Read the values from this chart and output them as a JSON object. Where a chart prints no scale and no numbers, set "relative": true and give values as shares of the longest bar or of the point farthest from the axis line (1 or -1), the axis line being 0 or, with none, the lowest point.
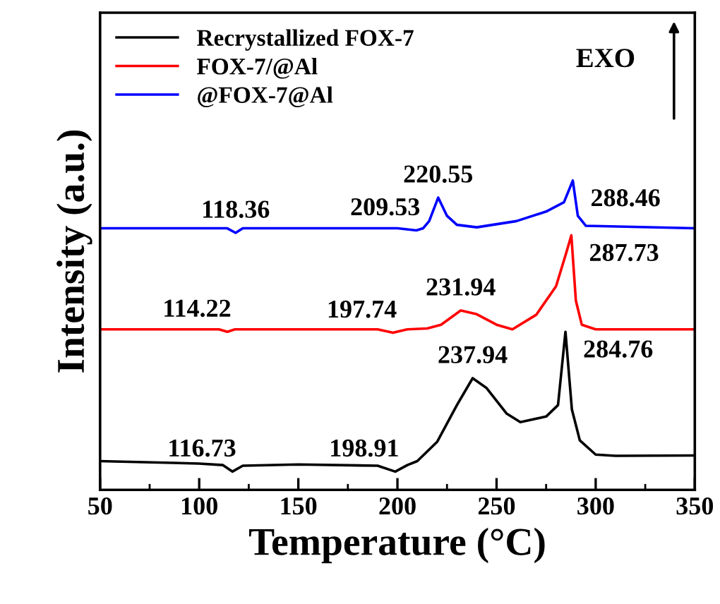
{
  "chart_data": {
    "type": "line",
    "relative": true,
    "xlabel": "Temperature (°C)",
    "ylabel": "Intensity (a.u.)",
    "xlim": [
      50,
      350
    ],
    "xticks": [
      50,
      100,
      150,
      200,
      250,
      300,
      350
    ],
    "legend": "top left",
    "series": [
      {
        "name": "Recrystallized FOX-7",
        "color": "#000000",
        "x": [
          50,
          100,
          112,
          116.73,
          122,
          150,
          190,
          198.91,
          205,
          210,
          220,
          230,
          237.94,
          245,
          255,
          262,
          275,
          281,
          284.76,
          288,
          292,
          300,
          310,
          350
        ],
        "values": [
          0.093,
          0.085,
          0.08,
          0.059,
          0.078,
          0.082,
          0.078,
          0.059,
          0.08,
          0.093,
          0.155,
          0.274,
          0.361,
          0.329,
          0.247,
          0.219,
          0.237,
          0.274,
          0.511,
          0.26,
          0.16,
          0.114,
          0.11,
          0.111
        ]
      },
      {
        "name": "FOX-7/@Al",
        "color": "#ff0000",
        "x": [
          50,
          110,
          114.22,
          118,
          190,
          197.74,
          205,
          215,
          222,
          231.94,
          240,
          250,
          258,
          270,
          280,
          285,
          287.73,
          290,
          293,
          300,
          350
        ],
        "values": [
          0.519,
          0.519,
          0.511,
          0.519,
          0.519,
          0.508,
          0.519,
          0.522,
          0.534,
          0.58,
          0.568,
          0.534,
          0.519,
          0.566,
          0.658,
          0.763,
          0.823,
          0.612,
          0.534,
          0.519,
          0.519
        ]
      },
      {
        "name": "@FOX-7@Al",
        "color": "#0000ff",
        "x": [
          50,
          114,
          118.36,
          122,
          200,
          209.53,
          213,
          216,
          220.55,
          225,
          230,
          240,
          260,
          275,
          284,
          288.46,
          291,
          295,
          350
        ],
        "values": [
          0.846,
          0.846,
          0.831,
          0.846,
          0.846,
          0.839,
          0.846,
          0.869,
          0.945,
          0.886,
          0.857,
          0.849,
          0.869,
          0.9,
          0.93,
          1.0,
          0.886,
          0.854,
          0.846
        ]
      }
    ],
    "annotations": [
      {
        "text": "116.73",
        "x": 116.73,
        "y": 0.059
      },
      {
        "text": "198.91",
        "x": 198.91,
        "y": 0.059
      },
      {
        "text": "237.94",
        "x": 237.94,
        "y": 0.361
      },
      {
        "text": "284.76",
        "x": 284.76,
        "y": 0.511
      },
      {
        "text": "114.22",
        "x": 114.22,
        "y": 0.511
      },
      {
        "text": "197.74",
        "x": 197.74,
        "y": 0.508
      },
      {
        "text": "231.94",
        "x": 231.94,
        "y": 0.58
      },
      {
        "text": "287.73",
        "x": 287.73,
        "y": 0.823
      },
      {
        "text": "118.36",
        "x": 118.36,
        "y": 0.831
      },
      {
        "text": "209.53",
        "x": 209.53,
        "y": 0.839
      },
      {
        "text": "220.55",
        "x": 220.55,
        "y": 0.945
      },
      {
        "text": "288.46",
        "x": 288.46,
        "y": 1.0
      },
      "EXO"
    ]
  }
}
